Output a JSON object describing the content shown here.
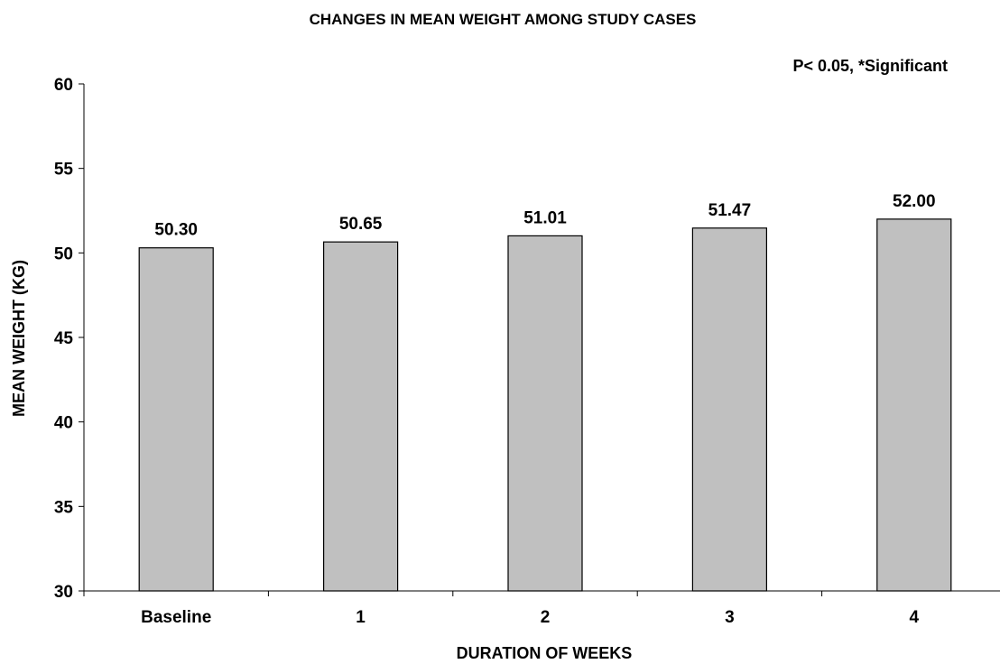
{
  "chart_data": {
    "type": "bar",
    "title": "CHANGES IN MEAN WEIGHT AMONG STUDY CASES",
    "annotation": "P< 0.05, *Significant",
    "xlabel": "DURATION OF WEEKS",
    "ylabel": "MEAN WEIGHT (KG)",
    "categories": [
      "Baseline",
      "1",
      "2",
      "3",
      "4"
    ],
    "values": [
      50.3,
      50.65,
      51.01,
      51.47,
      52.0
    ],
    "value_labels": [
      "50.30",
      "50.65",
      "51.01",
      "51.47",
      "52.00"
    ],
    "ylim": [
      30,
      60
    ],
    "yticks": [
      "30",
      "35",
      "40",
      "45",
      "50",
      "55",
      "60"
    ],
    "grid": false,
    "legend": "none",
    "bar_color": "#c0c0c0"
  }
}
